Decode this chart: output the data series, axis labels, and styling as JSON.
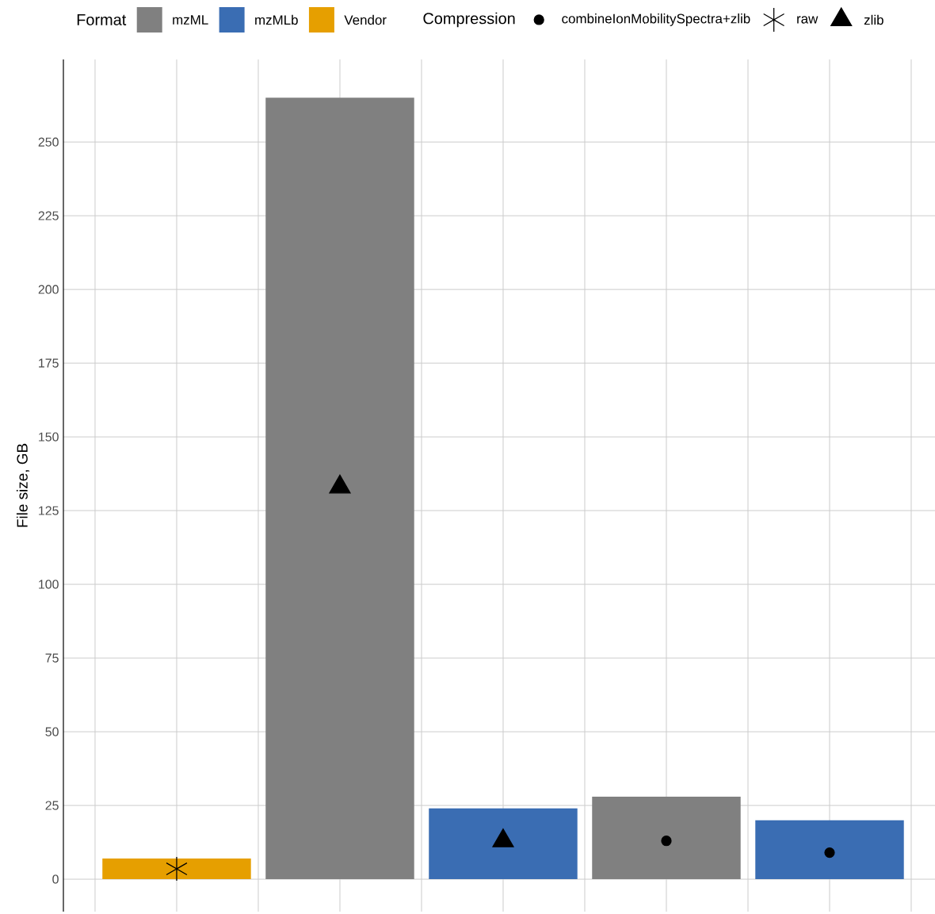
{
  "chart_data": {
    "type": "bar",
    "ylabel": "File size, GB",
    "legend_title": [
      "Format",
      "Compression"
    ],
    "categories": [
      null,
      null,
      null,
      null,
      null
    ],
    "series": [
      {
        "name": "mzML",
        "color": "#808080",
        "values": [
          null,
          265,
          null,
          28,
          null
        ]
      },
      {
        "name": "mzMLb",
        "color": "#3a6db3",
        "values": [
          null,
          null,
          24,
          null,
          20
        ]
      },
      {
        "name": "Vendor",
        "color": "#e69f00",
        "values": [
          7,
          null,
          null,
          null,
          null
        ]
      },
      {
        "name": "combineIonMobilitySpectra+zlib",
        "type": "scatter",
        "marker": "circle",
        "color": "#000000",
        "values": [
          null,
          null,
          null,
          13,
          9
        ]
      },
      {
        "name": "raw",
        "type": "scatter",
        "marker": "cross",
        "color": "#000000",
        "values": [
          3.5,
          null,
          null,
          null,
          null
        ]
      },
      {
        "name": "zlib",
        "type": "scatter",
        "marker": "triangle",
        "color": "#000000",
        "values": [
          null,
          133,
          13,
          null,
          null
        ]
      }
    ],
    "ylim": [
      -11,
      278
    ],
    "yticks": [
      0,
      25,
      50,
      75,
      100,
      125,
      150,
      175,
      200,
      225,
      250
    ],
    "grid": true,
    "legend": "top"
  }
}
